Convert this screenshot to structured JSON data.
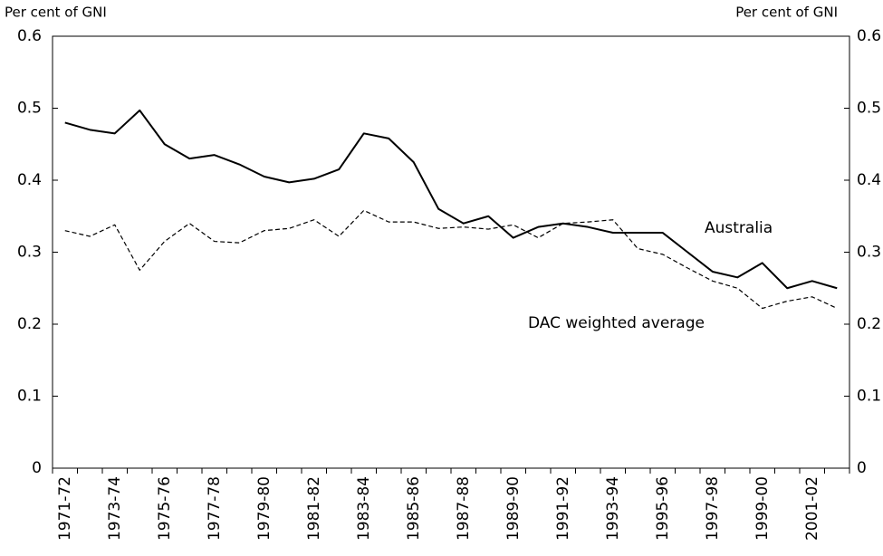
{
  "chart_data": {
    "type": "line",
    "ylabel": "Per cent of GNI",
    "y2label": "Per cent of GNI",
    "categories": [
      "1971-72",
      null,
      "1973-74",
      null,
      "1975-76",
      null,
      "1977-78",
      null,
      "1979-80",
      null,
      "1981-82",
      null,
      "1983-84",
      null,
      "1985-86",
      null,
      "1987-88",
      null,
      "1989-90",
      null,
      "1991-92",
      null,
      "1993-94",
      null,
      "1995-96",
      null,
      "1997-98",
      null,
      "1999-00",
      null,
      "2001-02",
      null
    ],
    "series": [
      {
        "name": "Australia",
        "color": "#000000",
        "linestyle": "solid",
        "values": [
          0.48,
          0.47,
          0.465,
          0.497,
          0.45,
          0.43,
          0.435,
          0.422,
          0.405,
          0.397,
          0.402,
          0.415,
          0.465,
          0.458,
          0.425,
          0.36,
          0.34,
          0.35,
          0.32,
          0.335,
          0.34,
          0.335,
          0.327,
          0.327,
          0.327,
          0.3,
          0.273,
          0.265,
          0.285,
          0.25,
          0.26,
          0.25
        ]
      },
      {
        "name": "DAC weighted average",
        "color": "#000000",
        "linestyle": "dashed",
        "values": [
          0.33,
          0.322,
          0.338,
          0.275,
          0.315,
          0.34,
          0.315,
          0.313,
          0.33,
          0.333,
          0.345,
          0.322,
          0.358,
          0.342,
          0.342,
          0.333,
          0.335,
          0.332,
          0.338,
          0.32,
          0.34,
          0.342,
          0.345,
          0.305,
          0.297,
          0.278,
          0.26,
          0.25,
          0.222,
          0.232,
          0.238,
          0.222
        ]
      }
    ],
    "ylim": [
      0,
      0.6
    ],
    "yticks": [
      0,
      0.1,
      0.2,
      0.3,
      0.4,
      0.5,
      0.6
    ],
    "y2lim": [
      0,
      0.6
    ],
    "y2ticks": [
      0,
      0.1,
      0.2,
      0.3,
      0.4,
      0.5,
      0.6
    ],
    "grid": false
  }
}
